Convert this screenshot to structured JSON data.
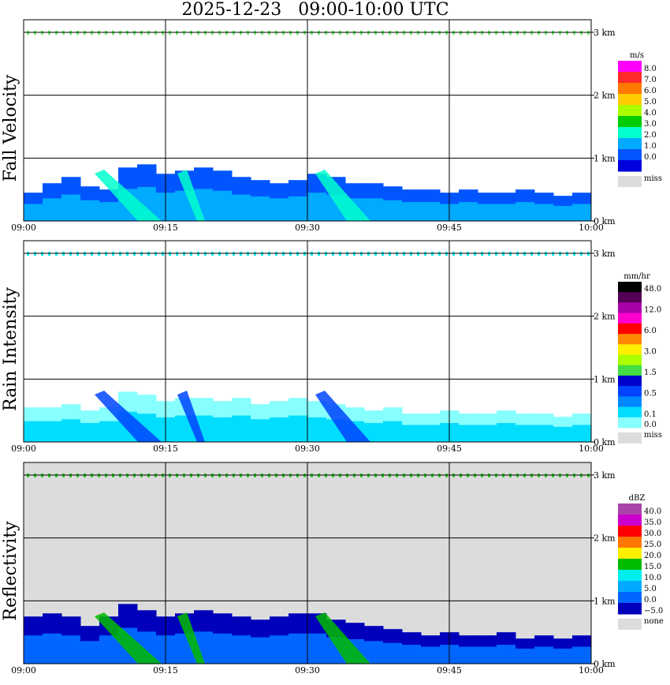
{
  "title": "2025-12-23   09:00-10:00 UTC",
  "colors": {
    "miss": "#dcdcdc",
    "grid": "#000000",
    "background": "#ffffff"
  },
  "chart_data": [
    {
      "type": "heatmap",
      "id": "fall-velocity",
      "ylabel": "Fall Velocity",
      "x_ticks": [
        "09:00",
        "09:15",
        "09:30",
        "09:45",
        "10:00"
      ],
      "y_ticks": [
        "0 km",
        "1 km",
        "2 km",
        "3 km"
      ],
      "ylim": [
        0,
        3.2
      ],
      "xlim_minutes": [
        0,
        60
      ],
      "background": "#ffffff",
      "colorbar": {
        "unit": "m/s",
        "levels": [
          {
            "label": "8.0",
            "color": "#ff00ff"
          },
          {
            "label": "7.0",
            "color": "#ff2a2a"
          },
          {
            "label": "6.0",
            "color": "#ff7a00"
          },
          {
            "label": "5.0",
            "color": "#ffcc00"
          },
          {
            "label": "4.0",
            "color": "#aaff00"
          },
          {
            "label": "3.0",
            "color": "#00cc00"
          },
          {
            "label": "2.0",
            "color": "#00ffcc"
          },
          {
            "label": "1.0",
            "color": "#00aaff"
          },
          {
            "label": "0.0",
            "color": "#0055ff"
          },
          {
            "label": "",
            "color": "#0000dd"
          }
        ],
        "miss_label": "miss"
      },
      "echo_top_km": [
        0.45,
        0.6,
        0.7,
        0.55,
        0.5,
        0.85,
        0.9,
        0.75,
        0.8,
        0.85,
        0.8,
        0.7,
        0.65,
        0.6,
        0.65,
        0.75,
        0.7,
        0.6,
        0.6,
        0.55,
        0.5,
        0.5,
        0.45,
        0.5,
        0.45,
        0.45,
        0.5,
        0.45,
        0.4,
        0.45
      ]
    },
    {
      "type": "heatmap",
      "id": "rain-intensity",
      "ylabel": "Rain Intensity",
      "x_ticks": [
        "09:00",
        "09:15",
        "09:30",
        "09:45",
        "10:00"
      ],
      "y_ticks": [
        "0 km",
        "1 km",
        "2 km",
        "3 km"
      ],
      "ylim": [
        0,
        3.2
      ],
      "xlim_minutes": [
        0,
        60
      ],
      "background": "#ffffff",
      "colorbar": {
        "unit": "mm/hr",
        "levels": [
          {
            "label": "48.0",
            "color": "#000000"
          },
          {
            "label": "",
            "color": "#550055"
          },
          {
            "label": "12.0",
            "color": "#aa00aa"
          },
          {
            "label": "",
            "color": "#ff00cc"
          },
          {
            "label": "6.0",
            "color": "#ff0000"
          },
          {
            "label": "",
            "color": "#ff8800"
          },
          {
            "label": "3.0",
            "color": "#ffee00"
          },
          {
            "label": "",
            "color": "#aaff00"
          },
          {
            "label": "1.5",
            "color": "#44dd44"
          },
          {
            "label": "",
            "color": "#0000cc"
          },
          {
            "label": "0.5",
            "color": "#0044ff"
          },
          {
            "label": "",
            "color": "#0088ff"
          },
          {
            "label": "0.1",
            "color": "#00ddff"
          },
          {
            "label": "0.0",
            "color": "#88ffff"
          }
        ],
        "miss_label": "miss"
      },
      "echo_top_km": [
        0.55,
        0.55,
        0.6,
        0.5,
        0.55,
        0.8,
        0.75,
        0.65,
        0.7,
        0.7,
        0.65,
        0.7,
        0.6,
        0.65,
        0.7,
        0.65,
        0.6,
        0.55,
        0.5,
        0.55,
        0.45,
        0.45,
        0.5,
        0.45,
        0.45,
        0.5,
        0.45,
        0.45,
        0.4,
        0.45
      ]
    },
    {
      "type": "heatmap",
      "id": "reflectivity",
      "ylabel": "Reflectivity",
      "x_ticks": [
        "09:00",
        "09:15",
        "09:30",
        "09:45",
        "10:00"
      ],
      "y_ticks": [
        "0 km",
        "1 km",
        "2 km",
        "3 km"
      ],
      "ylim": [
        0,
        3.2
      ],
      "xlim_minutes": [
        0,
        60
      ],
      "background": "#dcdcdc",
      "colorbar": {
        "unit": "dBZ",
        "levels": [
          {
            "label": "40.0",
            "color": "#aa44aa"
          },
          {
            "label": "35.0",
            "color": "#cc00cc"
          },
          {
            "label": "30.0",
            "color": "#ff0000"
          },
          {
            "label": "25.0",
            "color": "#ff7700"
          },
          {
            "label": "20.0",
            "color": "#ffee00"
          },
          {
            "label": "15.0",
            "color": "#00bb00"
          },
          {
            "label": "10.0",
            "color": "#00eeee"
          },
          {
            "label": "5.0",
            "color": "#00aaff"
          },
          {
            "label": "0.0",
            "color": "#0066ff"
          },
          {
            "label": "−5.0",
            "color": "#0000bb"
          }
        ],
        "miss_label": "none"
      },
      "echo_top_km": [
        0.75,
        0.8,
        0.75,
        0.6,
        0.75,
        0.95,
        0.85,
        0.75,
        0.8,
        0.85,
        0.8,
        0.75,
        0.7,
        0.75,
        0.8,
        0.8,
        0.7,
        0.65,
        0.6,
        0.55,
        0.5,
        0.45,
        0.5,
        0.45,
        0.45,
        0.5,
        0.4,
        0.45,
        0.4,
        0.45
      ]
    }
  ]
}
